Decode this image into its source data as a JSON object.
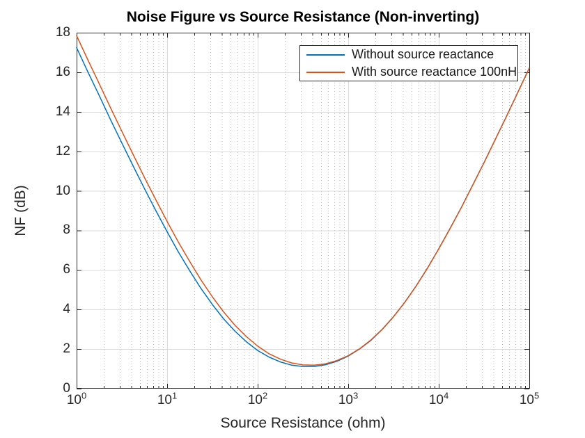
{
  "chart_data": {
    "type": "line",
    "title": "Noise Figure vs Source Resistance (Non-inverting)",
    "xlabel": "Source Resistance (ohm)",
    "ylabel": "NF (dB)",
    "x_scale": "log",
    "xlim": [
      1,
      100000
    ],
    "ylim": [
      0,
      18
    ],
    "x_tick_base": "10",
    "x_tick_exponents": [
      "0",
      "1",
      "2",
      "3",
      "4",
      "5"
    ],
    "x_ticks": [
      1,
      10,
      100,
      1000,
      10000,
      100000
    ],
    "y_ticks": [
      0,
      2,
      4,
      6,
      8,
      10,
      12,
      14,
      16,
      18
    ],
    "grid": {
      "y_major": true,
      "x_major": true,
      "x_minor_dotted": true,
      "y_minor": false
    },
    "legend": {
      "position": "top-right",
      "boxed": true
    },
    "colors": {
      "axis": "#262626",
      "major_grid": "#dbdbdb",
      "minor_grid": "#b8b8b8",
      "background": "#ffffff",
      "series_blue": "#0072BD",
      "series_orange": "#D95319"
    },
    "x": [
      1,
      1.33,
      1.78,
      2.37,
      3.16,
      4.22,
      5.62,
      7.5,
      10,
      13.3,
      17.8,
      23.7,
      31.6,
      42.2,
      56.2,
      75,
      100,
      133,
      178,
      237,
      316,
      422,
      562,
      750,
      1000,
      1330,
      1780,
      2370,
      3160,
      4220,
      5620,
      7500,
      10000,
      13300,
      17800,
      23700,
      31600,
      42200,
      56200,
      75000,
      100000
    ],
    "series": [
      {
        "name": "Without source reactance",
        "color": "#0072BD",
        "values": [
          17.24,
          16.02,
          14.81,
          13.6,
          12.42,
          11.25,
          10.11,
          9.0,
          7.93,
          6.91,
          5.95,
          5.06,
          4.25,
          3.52,
          2.9,
          2.37,
          1.93,
          1.6,
          1.35,
          1.19,
          1.12,
          1.12,
          1.21,
          1.38,
          1.65,
          2.0,
          2.44,
          2.99,
          3.63,
          4.37,
          5.19,
          6.09,
          7.07,
          8.09,
          9.17,
          10.29,
          11.43,
          12.61,
          13.79,
          15.0,
          16.21
        ]
      },
      {
        "name": "With source reactance 100nH",
        "color": "#D95319",
        "values": [
          17.85,
          16.63,
          15.41,
          14.2,
          13.01,
          11.83,
          10.67,
          9.55,
          8.45,
          7.41,
          6.42,
          5.49,
          4.64,
          3.87,
          3.2,
          2.63,
          2.15,
          1.77,
          1.49,
          1.3,
          1.2,
          1.19,
          1.26,
          1.42,
          1.67,
          2.01,
          2.46,
          3.0,
          3.64,
          4.37,
          5.19,
          6.1,
          7.07,
          8.09,
          9.17,
          10.29,
          11.43,
          12.61,
          13.79,
          15.0,
          16.21
        ]
      }
    ],
    "annotations": {
      "min_nf_without_db": 1.12,
      "min_nf_with_db": 1.19
    }
  }
}
